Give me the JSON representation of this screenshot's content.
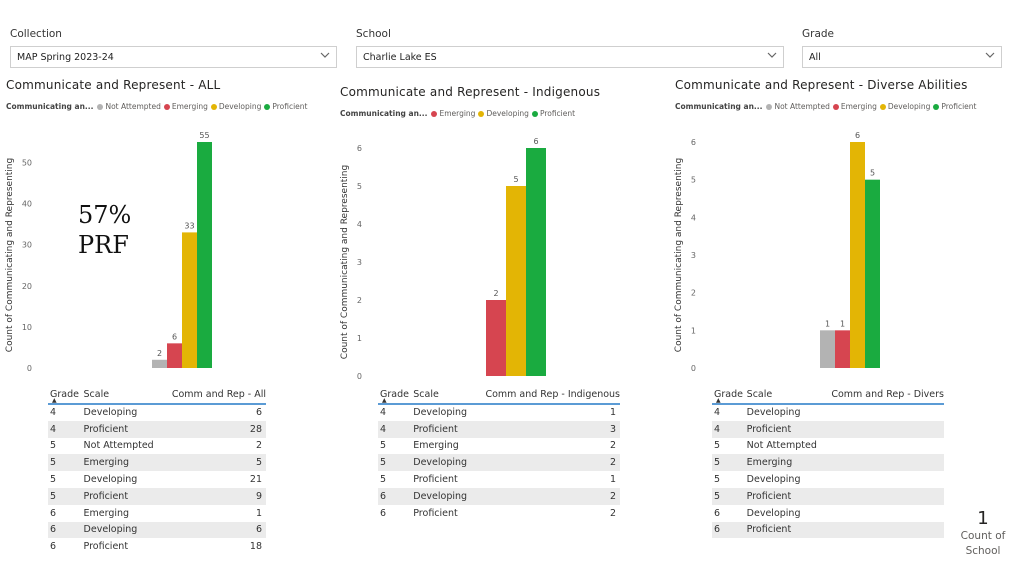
{
  "slicers": {
    "collection": {
      "label": "Collection",
      "value": "MAP Spring 2023-24"
    },
    "school": {
      "label": "School",
      "value": "Charlie Lake ES"
    },
    "grade": {
      "label": "Grade",
      "value": "All"
    }
  },
  "colors": {
    "not_attempted": "#b3b3b3",
    "emerging": "#d64550",
    "developing": "#e3b505",
    "proficient": "#1aab40",
    "table_header_line": "#5b9bd5"
  },
  "overlay": {
    "line1": "57%",
    "line2": "PRF"
  },
  "card": {
    "value": "1",
    "label_line1": "Count of",
    "label_line2": "School"
  },
  "chart_data": [
    {
      "type": "bar",
      "title": "Communicate and Represent - ALL",
      "legend_title": "Communicating an...",
      "legend": [
        "Not Attempted",
        "Emerging",
        "Developing",
        "Proficient"
      ],
      "ylabel": "Count of Communicating and Representing",
      "xlabel": "",
      "ylim": [
        0,
        55
      ],
      "yticks": [
        "0",
        "10",
        "20",
        "30",
        "40",
        "50"
      ],
      "grid": false,
      "series": [
        {
          "name": "Not Attempted",
          "values": [
            2
          ],
          "color": "#b3b3b3"
        },
        {
          "name": "Emerging",
          "values": [
            6
          ],
          "color": "#d64550"
        },
        {
          "name": "Developing",
          "values": [
            33
          ],
          "color": "#e3b505"
        },
        {
          "name": "Proficient",
          "values": [
            55
          ],
          "color": "#1aab40"
        }
      ]
    },
    {
      "type": "bar",
      "title": "Communicate and Represent - Indigenous",
      "legend_title": "Communicating an...",
      "legend": [
        "Emerging",
        "Developing",
        "Proficient"
      ],
      "ylabel": "Count of Communicating and Representing",
      "xlabel": "",
      "ylim": [
        0,
        6
      ],
      "yticks": [
        "0",
        "1",
        "2",
        "3",
        "4",
        "5",
        "6"
      ],
      "grid": false,
      "series": [
        {
          "name": "Emerging",
          "values": [
            2
          ],
          "color": "#d64550"
        },
        {
          "name": "Developing",
          "values": [
            5
          ],
          "color": "#e3b505"
        },
        {
          "name": "Proficient",
          "values": [
            6
          ],
          "color": "#1aab40"
        }
      ]
    },
    {
      "type": "bar",
      "title": "Communicate and Represent - Diverse Abilities",
      "legend_title": "Communicating an...",
      "legend": [
        "Not Attempted",
        "Emerging",
        "Developing",
        "Proficient"
      ],
      "ylabel": "Count of Communicating and Representing",
      "xlabel": "",
      "ylim": [
        0,
        6
      ],
      "yticks": [
        "0",
        "1",
        "2",
        "3",
        "4",
        "5",
        "6"
      ],
      "grid": false,
      "series": [
        {
          "name": "Not Attempted",
          "values": [
            1
          ],
          "color": "#b3b3b3"
        },
        {
          "name": "Emerging",
          "values": [
            1
          ],
          "color": "#d64550"
        },
        {
          "name": "Developing",
          "values": [
            6
          ],
          "color": "#e3b505"
        },
        {
          "name": "Proficient",
          "values": [
            5
          ],
          "color": "#1aab40"
        }
      ]
    }
  ],
  "tables": [
    {
      "headers": [
        "Grade",
        "Scale",
        "Comm and Rep - All"
      ],
      "rows": [
        [
          "4",
          "Developing",
          "6"
        ],
        [
          "4",
          "Proficient",
          "28"
        ],
        [
          "5",
          "Not Attempted",
          "2"
        ],
        [
          "5",
          "Emerging",
          "5"
        ],
        [
          "5",
          "Developing",
          "21"
        ],
        [
          "5",
          "Proficient",
          "9"
        ],
        [
          "6",
          "Emerging",
          "1"
        ],
        [
          "6",
          "Developing",
          "6"
        ],
        [
          "6",
          "Proficient",
          "18"
        ]
      ]
    },
    {
      "headers": [
        "Grade",
        "Scale",
        "Comm and Rep - Indigenous"
      ],
      "rows": [
        [
          "4",
          "Developing",
          "1"
        ],
        [
          "4",
          "Proficient",
          "3"
        ],
        [
          "5",
          "Emerging",
          "2"
        ],
        [
          "5",
          "Developing",
          "2"
        ],
        [
          "5",
          "Proficient",
          "1"
        ],
        [
          "6",
          "Developing",
          "2"
        ],
        [
          "6",
          "Proficient",
          "2"
        ]
      ]
    },
    {
      "headers": [
        "Grade",
        "Scale",
        "Comm and Rep - Divers"
      ],
      "rows": [
        [
          "4",
          "Developing",
          ""
        ],
        [
          "4",
          "Proficient",
          ""
        ],
        [
          "5",
          "Not Attempted",
          ""
        ],
        [
          "5",
          "Emerging",
          ""
        ],
        [
          "5",
          "Developing",
          ""
        ],
        [
          "5",
          "Proficient",
          ""
        ],
        [
          "6",
          "Developing",
          ""
        ],
        [
          "6",
          "Proficient",
          ""
        ]
      ]
    }
  ]
}
